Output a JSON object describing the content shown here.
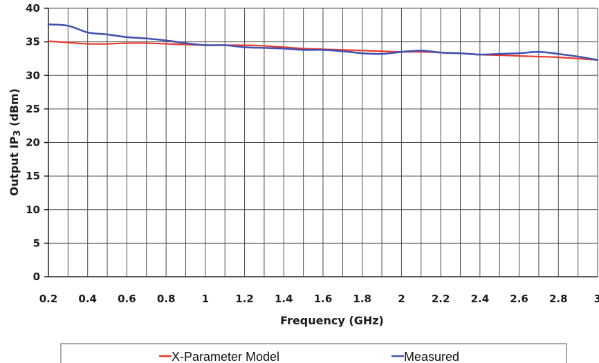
{
  "chart_data": {
    "type": "line",
    "title": "",
    "xlabel": "Frequency (GHz)",
    "ylabel_prefix": "Output IP",
    "ylabel_sub": "3",
    "ylabel_suffix": " (dBm)",
    "xlim": [
      0.2,
      3.0
    ],
    "ylim": [
      0,
      40
    ],
    "x_ticks": [
      0.2,
      0.4,
      0.6,
      0.8,
      1.0,
      1.2,
      1.4,
      1.6,
      1.8,
      2.0,
      2.2,
      2.4,
      2.6,
      2.8,
      3.0
    ],
    "x_tick_labels": [
      "0.2",
      "0.4",
      "0.6",
      "0.8",
      "1",
      "1.2",
      "1.4",
      "1.6",
      "1.8",
      "2",
      "2.2",
      "2.4",
      "2.6",
      "2.8",
      "3"
    ],
    "y_ticks": [
      0,
      5,
      10,
      15,
      20,
      25,
      30,
      35,
      40
    ],
    "y_tick_labels": [
      "0",
      "5",
      "10",
      "15",
      "20",
      "25",
      "30",
      "35",
      "40"
    ],
    "x_grid_step": 0.1,
    "y_grid_step": 5,
    "grid": true,
    "legend_position": "bottom",
    "series": [
      {
        "name": "X-Parameter Model",
        "color": "#e8392b",
        "x": [
          0.2,
          0.3,
          0.4,
          0.5,
          0.6,
          0.7,
          0.8,
          0.9,
          1.0,
          1.1,
          1.2,
          1.3,
          1.4,
          1.5,
          1.6,
          1.7,
          1.8,
          1.9,
          2.0,
          2.1,
          2.2,
          2.3,
          2.4,
          2.5,
          2.6,
          2.7,
          2.8,
          2.9,
          3.0
        ],
        "y": [
          35.1,
          34.9,
          34.7,
          34.7,
          34.8,
          34.8,
          34.7,
          34.6,
          34.5,
          34.5,
          34.5,
          34.4,
          34.2,
          34.0,
          33.9,
          33.8,
          33.7,
          33.6,
          33.5,
          33.5,
          33.4,
          33.3,
          33.1,
          33.0,
          32.9,
          32.8,
          32.7,
          32.5,
          32.3
        ]
      },
      {
        "name": "Measured",
        "color": "#4152b3",
        "x": [
          0.2,
          0.3,
          0.4,
          0.5,
          0.6,
          0.7,
          0.8,
          0.9,
          1.0,
          1.1,
          1.2,
          1.3,
          1.4,
          1.5,
          1.6,
          1.7,
          1.8,
          1.9,
          2.0,
          2.1,
          2.2,
          2.3,
          2.4,
          2.5,
          2.6,
          2.7,
          2.8,
          2.9,
          3.0
        ],
        "y": [
          37.6,
          37.4,
          36.4,
          36.1,
          35.7,
          35.5,
          35.2,
          34.8,
          34.5,
          34.5,
          34.2,
          34.1,
          34.0,
          33.8,
          33.8,
          33.6,
          33.3,
          33.2,
          33.5,
          33.7,
          33.4,
          33.3,
          33.1,
          33.2,
          33.3,
          33.5,
          33.2,
          32.8,
          32.3
        ]
      }
    ]
  }
}
